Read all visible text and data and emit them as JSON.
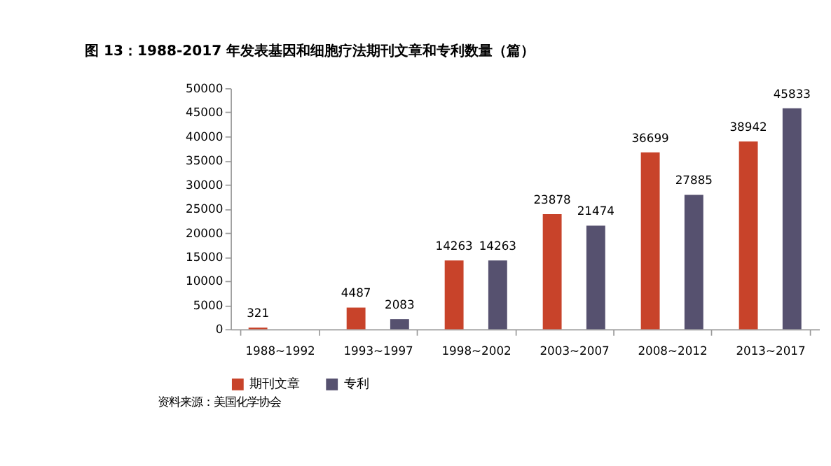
{
  "chart_data": {
    "type": "bar",
    "title": "图 13：1988-2017 年发表基因和细胞疗法期刊文章和专利数量（篇）",
    "categories": [
      "1988~1992",
      "1993~1997",
      "1998~2002",
      "2003~2007",
      "2008~2012",
      "2013~2017"
    ],
    "series": [
      {
        "name": "期刊文章",
        "color": "#c8432a",
        "values": [
          321,
          4487,
          14263,
          23878,
          36699,
          38942
        ]
      },
      {
        "name": "专利",
        "color": "#56516f",
        "values": [
          null,
          2083,
          14263,
          21474,
          27885,
          45833
        ]
      }
    ],
    "ylim": [
      0,
      50000
    ],
    "yticks": [
      0,
      5000,
      10000,
      15000,
      20000,
      25000,
      30000,
      35000,
      40000,
      45000,
      50000
    ],
    "data_labels": true,
    "grid": false,
    "legend": "bottom",
    "annotations": [
      "资料来源：美国化学协会"
    ]
  }
}
